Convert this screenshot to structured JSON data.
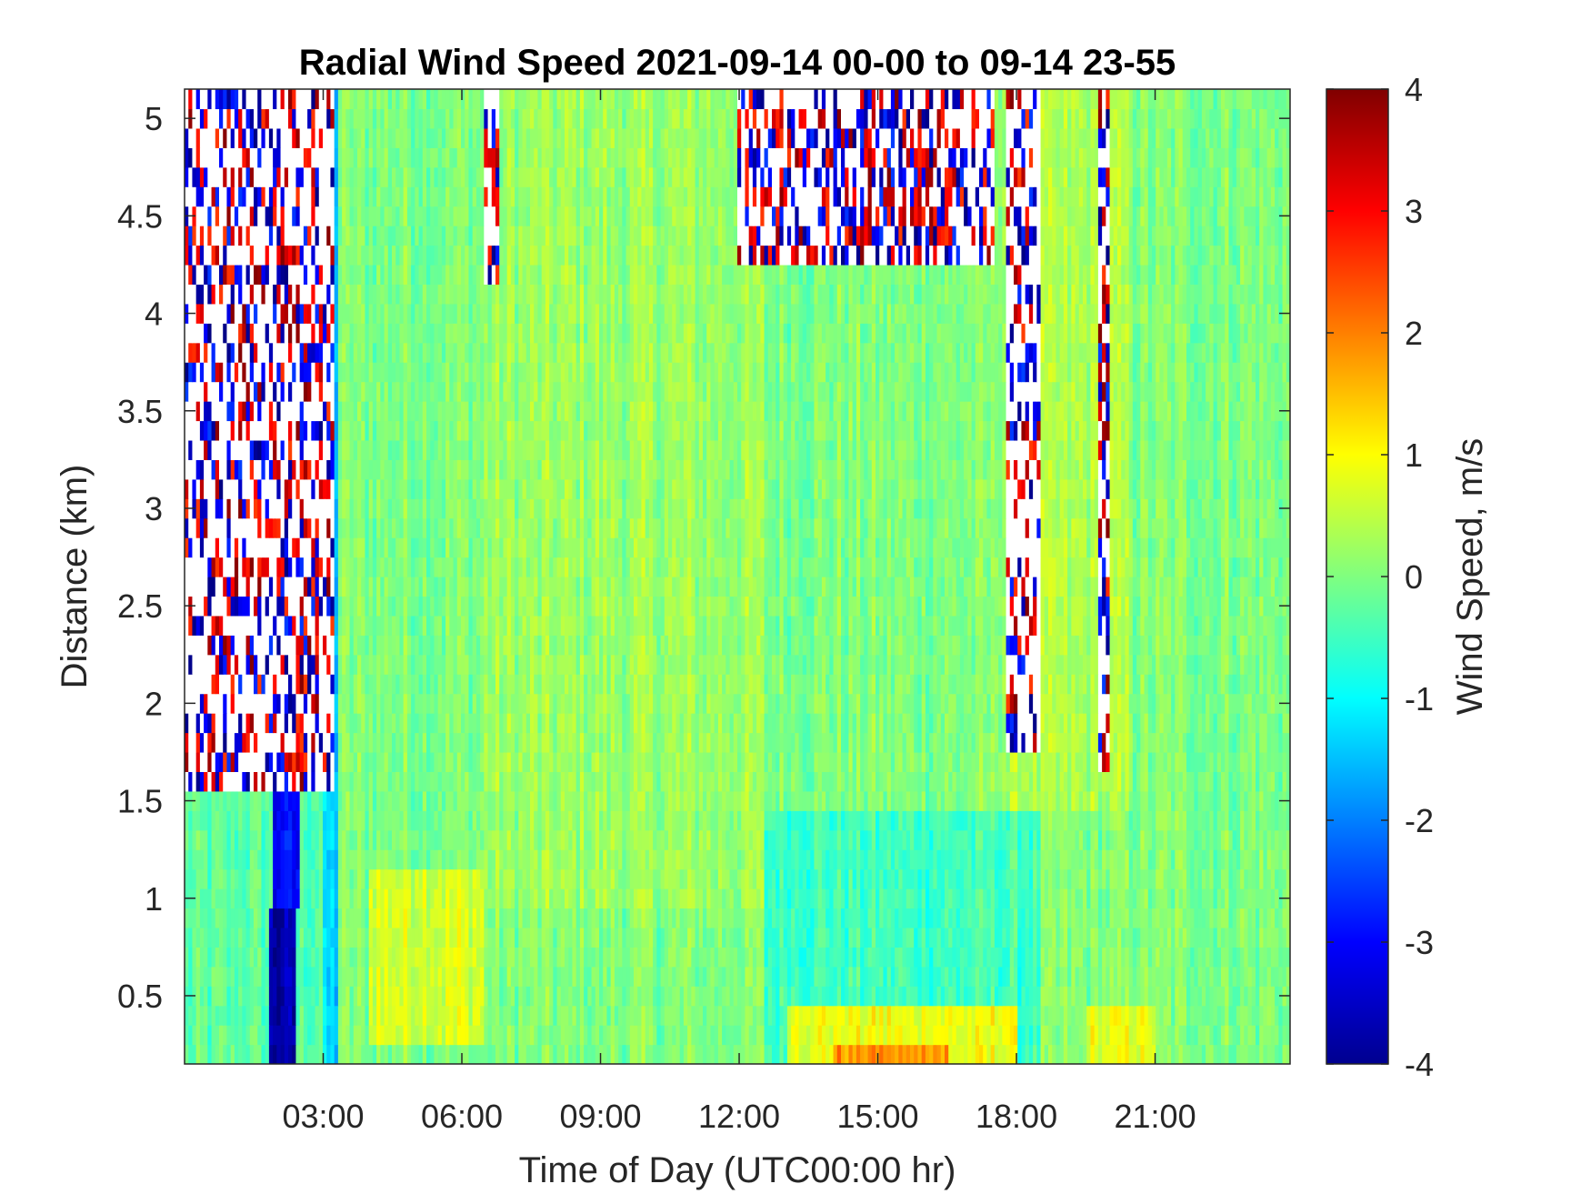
{
  "chart_data": {
    "type": "heatmap",
    "title": "Radial Wind Speed 2021-09-14 00-00 to 09-14 23-55",
    "xlabel": "Time of Day (UTC00:00 hr)",
    "ylabel": "Distance (km)",
    "colorbar_label": "Wind Speed, m/s",
    "colormap": "jet",
    "x_unit": "hours",
    "xlim": [
      0,
      23.92
    ],
    "ylim": [
      0.15,
      5.15
    ],
    "clim": [
      -4,
      4
    ],
    "x_ticks": [
      {
        "value": 3,
        "label": "03:00"
      },
      {
        "value": 6,
        "label": "06:00"
      },
      {
        "value": 9,
        "label": "09:00"
      },
      {
        "value": 12,
        "label": "12:00"
      },
      {
        "value": 15,
        "label": "15:00"
      },
      {
        "value": 18,
        "label": "18:00"
      },
      {
        "value": 21,
        "label": "21:00"
      }
    ],
    "y_ticks": [
      {
        "value": 0.5,
        "label": "0.5"
      },
      {
        "value": 1,
        "label": "1"
      },
      {
        "value": 1.5,
        "label": "1.5"
      },
      {
        "value": 2,
        "label": "2"
      },
      {
        "value": 2.5,
        "label": "2.5"
      },
      {
        "value": 3,
        "label": "3"
      },
      {
        "value": 3.5,
        "label": "3.5"
      },
      {
        "value": 4,
        "label": "4"
      },
      {
        "value": 4.5,
        "label": "4.5"
      },
      {
        "value": 5,
        "label": "5"
      }
    ],
    "colorbar_ticks": [
      {
        "value": 4,
        "label": "4"
      },
      {
        "value": 3,
        "label": "3"
      },
      {
        "value": 2,
        "label": "2"
      },
      {
        "value": 1,
        "label": "1"
      },
      {
        "value": 0,
        "label": "0"
      },
      {
        "value": -1,
        "label": "-1"
      },
      {
        "value": -2,
        "label": "-2"
      },
      {
        "value": -3,
        "label": "-3"
      },
      {
        "value": -4,
        "label": "-4"
      }
    ],
    "regions": [
      {
        "x": [
          0,
          24
        ],
        "y": [
          0.15,
          5.15
        ],
        "value": 0.0
      },
      {
        "x": [
          0,
          3.2
        ],
        "y": [
          0.15,
          1.6
        ],
        "value": -0.3
      },
      {
        "x": [
          1.8,
          2.4
        ],
        "y": [
          0.15,
          1.0
        ],
        "value": -3.7
      },
      {
        "x": [
          1.9,
          2.5
        ],
        "y": [
          1.0,
          3.0
        ],
        "value": -3.0
      },
      {
        "x": [
          2.3,
          3.0
        ],
        "y": [
          2.0,
          4.3
        ],
        "value": -2.8
      },
      {
        "x": [
          3.0,
          3.3
        ],
        "y": [
          0.15,
          5.15
        ],
        "value": -1.4
      },
      {
        "x": [
          4.0,
          6.5
        ],
        "y": [
          0.3,
          1.2
        ],
        "value": 0.7
      },
      {
        "x": [
          6.5,
          12.5
        ],
        "y": [
          1.0,
          5.15
        ],
        "value": 0.2
      },
      {
        "x": [
          12.5,
          18.5
        ],
        "y": [
          0.15,
          1.5
        ],
        "value": -0.5
      },
      {
        "x": [
          13.0,
          18.0
        ],
        "y": [
          0.15,
          0.45
        ],
        "value": 0.9
      },
      {
        "x": [
          14.0,
          16.5
        ],
        "y": [
          0.15,
          0.3
        ],
        "value": 1.8
      },
      {
        "x": [
          17.5,
          20.5
        ],
        "y": [
          1.5,
          5.15
        ],
        "value": 0.3
      },
      {
        "x": [
          19.5,
          21.0
        ],
        "y": [
          0.15,
          0.4
        ],
        "value": 0.8
      }
    ],
    "no_data_regions": [
      {
        "x": [
          0.0,
          3.2
        ],
        "y": [
          1.6,
          5.15
        ],
        "density": 0.55
      },
      {
        "x": [
          12.0,
          17.5
        ],
        "y": [
          4.3,
          5.15
        ],
        "density": 0.5
      },
      {
        "x": [
          17.8,
          18.5
        ],
        "y": [
          1.75,
          5.15
        ],
        "density": 0.6
      },
      {
        "x": [
          6.5,
          6.8
        ],
        "y": [
          4.2,
          5.15
        ],
        "density": 0.5
      },
      {
        "x": [
          19.8,
          20.0
        ],
        "y": [
          1.7,
          5.15
        ],
        "density": 0.5
      }
    ]
  }
}
